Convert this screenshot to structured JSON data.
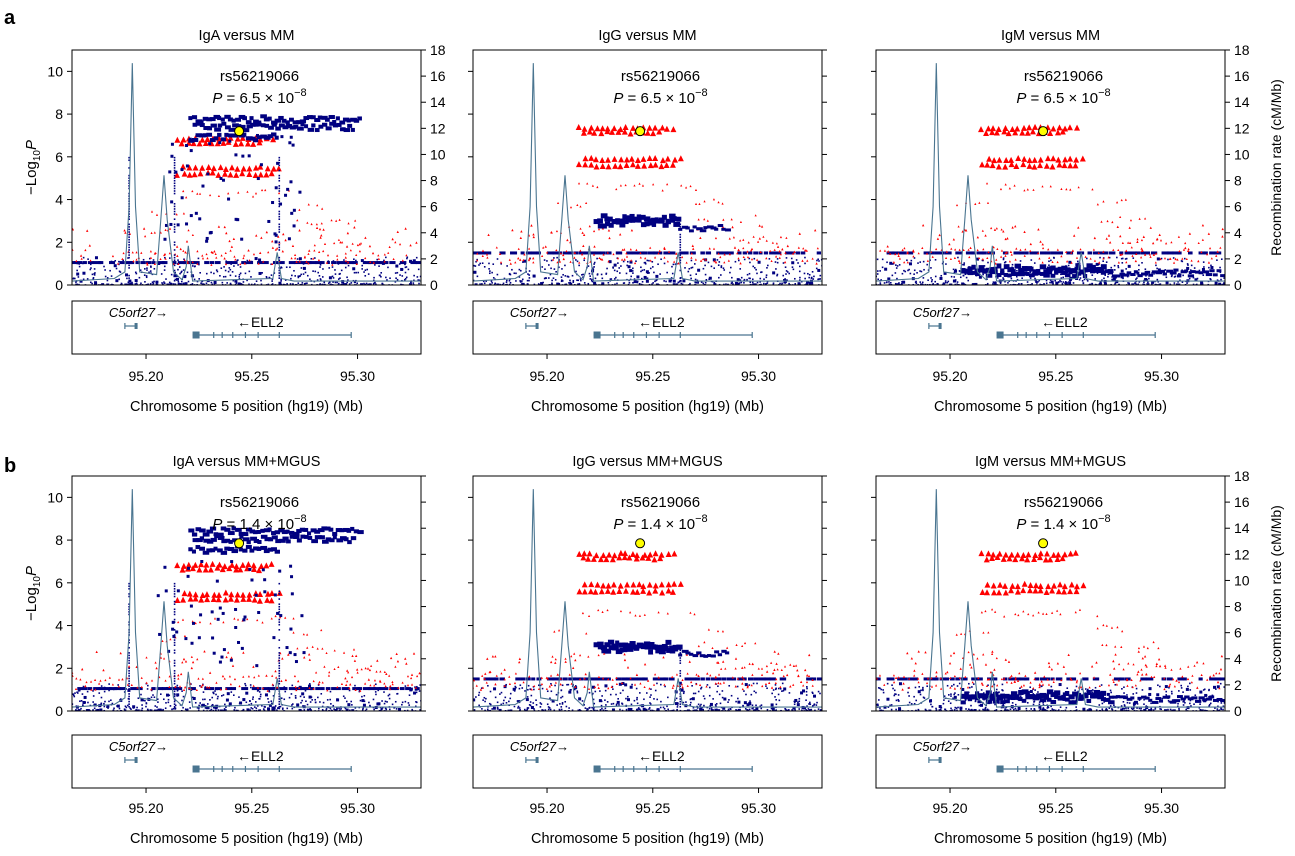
{
  "figure": {
    "panel_labels": [
      "a",
      "b"
    ],
    "colors": {
      "blue": "#000080",
      "red": "#ff0000",
      "line": "#4a7590",
      "lead": "#ffff00"
    }
  },
  "chart_data": [
    {
      "type": "scatter",
      "panel": "a",
      "title": "IgA versus MM",
      "snp": "rs56219066",
      "p_label": "P = 6.5 × 10",
      "pval": "6.5 × 10^-8",
      "p_exponent": "−8",
      "xlabel": "Chromosome 5 position (hg19) (Mb)",
      "ylabel": "−Log10P",
      "y2label": "Recombination rate (cM/Mb)",
      "xlim": [
        95.165,
        95.33
      ],
      "ylim": [
        0,
        11
      ],
      "y2lim": [
        0,
        18
      ],
      "xticks": [
        "95.20",
        "95.25",
        "95.30"
      ],
      "yticks": [
        0,
        2,
        4,
        6,
        8,
        10
      ],
      "y2ticks": [
        0,
        2,
        4,
        6,
        8,
        10,
        12,
        14,
        16,
        18
      ],
      "lead_snp": {
        "x": 95.244,
        "y": 7.2
      },
      "pattern": "iga",
      "genes": [
        {
          "name": "C5orf27→",
          "start": 95.19,
          "end": 95.196,
          "strand": "+"
        },
        {
          "name": "←ELL2",
          "start": 95.222,
          "end": 95.297,
          "strand": "-"
        }
      ]
    },
    {
      "type": "scatter",
      "panel": "a",
      "title": "IgG versus MM",
      "snp": "rs56219066",
      "p_label": "P = 6.5 × 10",
      "pval": "6.5 × 10^-8",
      "p_exponent": "−8",
      "xlabel": "Chromosome 5 position (hg19) (Mb)",
      "xlim": [
        95.165,
        95.33
      ],
      "ylim": [
        0,
        11
      ],
      "y2lim": [
        0,
        18
      ],
      "xticks": [
        "95.20",
        "95.25",
        "95.30"
      ],
      "lead_snp": {
        "x": 95.244,
        "y": 7.2
      },
      "pattern": "igg",
      "genes": [
        {
          "name": "C5orf27→",
          "start": 95.19,
          "end": 95.196,
          "strand": "+"
        },
        {
          "name": "←ELL2",
          "start": 95.222,
          "end": 95.297,
          "strand": "-"
        }
      ]
    },
    {
      "type": "scatter",
      "panel": "a",
      "title": "IgM versus MM",
      "snp": "rs56219066",
      "p_label": "P = 6.5 × 10",
      "pval": "6.5 × 10^-8",
      "p_exponent": "−8",
      "xlabel": "Chromosome 5 position (hg19) (Mb)",
      "ylabel2": "Recombination rate (cM/Mb)",
      "xlim": [
        95.165,
        95.33
      ],
      "ylim": [
        0,
        11
      ],
      "y2lim": [
        0,
        18
      ],
      "xticks": [
        "95.20",
        "95.25",
        "95.30"
      ],
      "y2ticks": [
        0,
        2,
        4,
        6,
        8,
        10,
        12,
        14,
        16,
        18
      ],
      "lead_snp": {
        "x": 95.244,
        "y": 7.2
      },
      "pattern": "igm",
      "genes": [
        {
          "name": "C5orf27→",
          "start": 95.19,
          "end": 95.196,
          "strand": "+"
        },
        {
          "name": "←ELL2",
          "start": 95.222,
          "end": 95.297,
          "strand": "-"
        }
      ]
    },
    {
      "type": "scatter",
      "panel": "b",
      "title": "IgA versus MM+MGUS",
      "snp": "rs56219066",
      "p_label": "P = 1.4 × 10",
      "pval": "1.4 × 10^-8",
      "p_exponent": "−8",
      "xlabel": "Chromosome 5 position (hg19) (Mb)",
      "ylabel": "−Log10P",
      "xlim": [
        95.165,
        95.33
      ],
      "ylim": [
        0,
        11
      ],
      "y2lim": [
        0,
        18
      ],
      "xticks": [
        "95.20",
        "95.25",
        "95.30"
      ],
      "yticks": [
        0,
        2,
        4,
        6,
        8,
        10
      ],
      "lead_snp": {
        "x": 95.244,
        "y": 7.85
      },
      "pattern": "iga",
      "genes": [
        {
          "name": "C5orf27→",
          "start": 95.19,
          "end": 95.196,
          "strand": "+"
        },
        {
          "name": "←ELL2",
          "start": 95.222,
          "end": 95.297,
          "strand": "-"
        }
      ]
    },
    {
      "type": "scatter",
      "panel": "b",
      "title": "IgG versus MM+MGUS",
      "snp": "rs56219066",
      "p_label": "P = 1.4 × 10",
      "pval": "1.4 × 10^-8",
      "p_exponent": "−8",
      "xlabel": "Chromosome 5 position (hg19) (Mb)",
      "xlim": [
        95.165,
        95.33
      ],
      "ylim": [
        0,
        11
      ],
      "y2lim": [
        0,
        18
      ],
      "xticks": [
        "95.20",
        "95.25",
        "95.30"
      ],
      "lead_snp": {
        "x": 95.244,
        "y": 7.85
      },
      "pattern": "igg",
      "genes": [
        {
          "name": "C5orf27→",
          "start": 95.19,
          "end": 95.196,
          "strand": "+"
        },
        {
          "name": "←ELL2",
          "start": 95.222,
          "end": 95.297,
          "strand": "-"
        }
      ]
    },
    {
      "type": "scatter",
      "panel": "b",
      "title": "IgM versus MM+MGUS",
      "snp": "rs56219066",
      "p_label": "P = 1.4 × 10",
      "pval": "1.4 × 10^-8",
      "p_exponent": "−8",
      "xlabel": "Chromosome 5 position (hg19) (Mb)",
      "ylabel2": "Recombination rate (cM/Mb)",
      "xlim": [
        95.165,
        95.33
      ],
      "ylim": [
        0,
        11
      ],
      "y2lim": [
        0,
        18
      ],
      "xticks": [
        "95.20",
        "95.25",
        "95.30"
      ],
      "y2ticks": [
        0,
        2,
        4,
        6,
        8,
        10,
        12,
        14,
        16,
        18
      ],
      "lead_snp": {
        "x": 95.244,
        "y": 7.85
      },
      "pattern": "igm",
      "genes": [
        {
          "name": "C5orf27→",
          "start": 95.19,
          "end": 95.196,
          "strand": "+"
        },
        {
          "name": "←ELL2",
          "start": 95.222,
          "end": 95.297,
          "strand": "-"
        }
      ]
    }
  ],
  "recombination_rate": {
    "x": [
      95.165,
      95.185,
      95.19,
      95.192,
      95.1935,
      95.195,
      95.197,
      95.205,
      95.207,
      95.2085,
      95.21,
      95.213,
      95.217,
      95.219,
      95.22,
      95.222,
      95.26,
      95.262,
      95.264,
      95.27,
      95.33
    ],
    "y": [
      0.3,
      0.5,
      1.0,
      6.0,
      17.0,
      6.0,
      1.0,
      0.8,
      5.0,
      8.4,
      5.0,
      1.0,
      0.4,
      1.4,
      3.0,
      0.3,
      0.5,
      2.5,
      0.5,
      0.3,
      0.3
    ]
  }
}
